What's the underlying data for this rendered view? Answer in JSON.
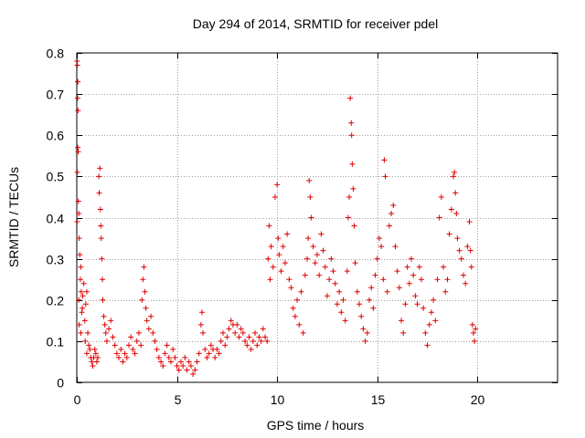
{
  "chart_data": {
    "type": "scatter",
    "title": "Day 294 of 2014, SRMTID for receiver pdel",
    "xlabel": "GPS time / hours",
    "ylabel": "SRMTID / TECUs",
    "xlim": [
      0,
      24
    ],
    "ylim": [
      0,
      0.8
    ],
    "xticks": [
      0,
      5,
      10,
      15,
      20
    ],
    "xtick_labels": [
      "0",
      "5",
      "10",
      "15",
      "20"
    ],
    "yticks": [
      0,
      0.1,
      0.2,
      0.3,
      0.4,
      0.5,
      0.6,
      0.7,
      0.8
    ],
    "ytick_labels": [
      "0",
      "0.1",
      "0.2",
      "0.3",
      "0.4",
      "0.5",
      "0.6",
      "0.7",
      "0.8"
    ],
    "grid": true,
    "marker": "+",
    "colors": {
      "points": "#e00000",
      "grid": "#a0a0a0",
      "axes": "#000000"
    },
    "series": [
      {
        "name": "SRMTID",
        "points": [
          [
            0.02,
            0.78
          ],
          [
            0.03,
            0.77
          ],
          [
            0.05,
            0.73
          ],
          [
            0.04,
            0.69
          ],
          [
            0.06,
            0.66
          ],
          [
            0.05,
            0.57
          ],
          [
            0.07,
            0.56
          ],
          [
            0.03,
            0.51
          ],
          [
            0.08,
            0.44
          ],
          [
            0.1,
            0.41
          ],
          [
            0.02,
            0.39
          ],
          [
            0.12,
            0.35
          ],
          [
            0.15,
            0.31
          ],
          [
            0.2,
            0.28
          ],
          [
            0.18,
            0.25
          ],
          [
            0.22,
            0.22
          ],
          [
            0.1,
            0.2
          ],
          [
            0.25,
            0.17
          ],
          [
            0.3,
            0.21
          ],
          [
            0.35,
            0.24
          ],
          [
            0.28,
            0.18
          ],
          [
            0.12,
            0.14
          ],
          [
            0.4,
            0.15
          ],
          [
            0.2,
            0.12
          ],
          [
            0.45,
            0.19
          ],
          [
            0.5,
            0.22
          ],
          [
            0.42,
            0.1
          ],
          [
            0.55,
            0.12
          ],
          [
            0.6,
            0.09
          ],
          [
            0.5,
            0.07
          ],
          [
            0.65,
            0.08
          ],
          [
            0.7,
            0.06
          ],
          [
            0.75,
            0.05
          ],
          [
            0.8,
            0.04
          ],
          [
            0.85,
            0.06
          ],
          [
            0.9,
            0.08
          ],
          [
            0.95,
            0.07
          ],
          [
            1.0,
            0.05
          ],
          [
            1.05,
            0.06
          ],
          [
            1.1,
            0.5
          ],
          [
            1.15,
            0.52
          ],
          [
            1.12,
            0.46
          ],
          [
            1.18,
            0.42
          ],
          [
            1.2,
            0.38
          ],
          [
            1.22,
            0.35
          ],
          [
            1.25,
            0.3
          ],
          [
            1.28,
            0.25
          ],
          [
            1.3,
            0.2
          ],
          [
            1.35,
            0.16
          ],
          [
            1.4,
            0.14
          ],
          [
            1.45,
            0.12
          ],
          [
            1.5,
            0.1
          ],
          [
            1.6,
            0.13
          ],
          [
            1.7,
            0.15
          ],
          [
            1.8,
            0.11
          ],
          [
            1.9,
            0.09
          ],
          [
            2.0,
            0.07
          ],
          [
            2.1,
            0.06
          ],
          [
            2.2,
            0.08
          ],
          [
            2.3,
            0.05
          ],
          [
            2.4,
            0.07
          ],
          [
            2.5,
            0.06
          ],
          [
            2.6,
            0.09
          ],
          [
            2.7,
            0.11
          ],
          [
            2.8,
            0.08
          ],
          [
            2.9,
            0.07
          ],
          [
            3.0,
            0.1
          ],
          [
            3.1,
            0.12
          ],
          [
            3.2,
            0.09
          ],
          [
            3.25,
            0.2
          ],
          [
            3.3,
            0.25
          ],
          [
            3.35,
            0.28
          ],
          [
            3.4,
            0.22
          ],
          [
            3.45,
            0.18
          ],
          [
            3.5,
            0.15
          ],
          [
            3.6,
            0.13
          ],
          [
            3.7,
            0.16
          ],
          [
            3.8,
            0.12
          ],
          [
            3.9,
            0.1
          ],
          [
            4.0,
            0.08
          ],
          [
            4.1,
            0.06
          ],
          [
            4.2,
            0.05
          ],
          [
            4.3,
            0.04
          ],
          [
            4.4,
            0.07
          ],
          [
            4.5,
            0.09
          ],
          [
            4.6,
            0.06
          ],
          [
            4.7,
            0.05
          ],
          [
            4.8,
            0.08
          ],
          [
            4.9,
            0.06
          ],
          [
            5.0,
            0.04
          ],
          [
            5.1,
            0.03
          ],
          [
            5.2,
            0.05
          ],
          [
            5.3,
            0.04
          ],
          [
            5.4,
            0.06
          ],
          [
            5.5,
            0.03
          ],
          [
            5.6,
            0.05
          ],
          [
            5.7,
            0.04
          ],
          [
            5.8,
            0.02
          ],
          [
            5.9,
            0.03
          ],
          [
            6.0,
            0.05
          ],
          [
            6.1,
            0.07
          ],
          [
            6.2,
            0.14
          ],
          [
            6.25,
            0.17
          ],
          [
            6.3,
            0.12
          ],
          [
            6.4,
            0.08
          ],
          [
            6.5,
            0.06
          ],
          [
            6.6,
            0.07
          ],
          [
            6.7,
            0.09
          ],
          [
            6.8,
            0.08
          ],
          [
            6.9,
            0.06
          ],
          [
            7.0,
            0.08
          ],
          [
            7.1,
            0.07
          ],
          [
            7.2,
            0.1
          ],
          [
            7.3,
            0.12
          ],
          [
            7.4,
            0.09
          ],
          [
            7.5,
            0.11
          ],
          [
            7.6,
            0.13
          ],
          [
            7.7,
            0.15
          ],
          [
            7.8,
            0.14
          ],
          [
            7.9,
            0.12
          ],
          [
            8.0,
            0.14
          ],
          [
            8.1,
            0.11
          ],
          [
            8.2,
            0.13
          ],
          [
            8.3,
            0.12
          ],
          [
            8.4,
            0.1
          ],
          [
            8.5,
            0.09
          ],
          [
            8.6,
            0.11
          ],
          [
            8.7,
            0.08
          ],
          [
            8.8,
            0.1
          ],
          [
            8.9,
            0.12
          ],
          [
            9.0,
            0.09
          ],
          [
            9.1,
            0.11
          ],
          [
            9.2,
            0.1
          ],
          [
            9.3,
            0.13
          ],
          [
            9.4,
            0.11
          ],
          [
            9.5,
            0.1
          ],
          [
            9.55,
            0.3
          ],
          [
            9.6,
            0.38
          ],
          [
            9.65,
            0.25
          ],
          [
            9.7,
            0.33
          ],
          [
            9.8,
            0.28
          ],
          [
            9.9,
            0.45
          ],
          [
            10.0,
            0.48
          ],
          [
            10.05,
            0.35
          ],
          [
            10.1,
            0.31
          ],
          [
            10.2,
            0.27
          ],
          [
            10.3,
            0.33
          ],
          [
            10.4,
            0.29
          ],
          [
            10.5,
            0.36
          ],
          [
            10.6,
            0.25
          ],
          [
            10.7,
            0.23
          ],
          [
            10.8,
            0.18
          ],
          [
            10.9,
            0.16
          ],
          [
            11.0,
            0.2
          ],
          [
            11.1,
            0.14
          ],
          [
            11.2,
            0.22
          ],
          [
            11.3,
            0.12
          ],
          [
            11.4,
            0.26
          ],
          [
            11.5,
            0.3
          ],
          [
            11.55,
            0.35
          ],
          [
            11.6,
            0.49
          ],
          [
            11.65,
            0.45
          ],
          [
            11.7,
            0.4
          ],
          [
            11.8,
            0.33
          ],
          [
            11.9,
            0.29
          ],
          [
            12.0,
            0.31
          ],
          [
            12.1,
            0.26
          ],
          [
            12.2,
            0.36
          ],
          [
            12.3,
            0.32
          ],
          [
            12.4,
            0.28
          ],
          [
            12.5,
            0.21
          ],
          [
            12.6,
            0.25
          ],
          [
            12.7,
            0.3
          ],
          [
            12.8,
            0.27
          ],
          [
            12.9,
            0.24
          ],
          [
            13.0,
            0.19
          ],
          [
            13.1,
            0.22
          ],
          [
            13.2,
            0.17
          ],
          [
            13.3,
            0.2
          ],
          [
            13.4,
            0.15
          ],
          [
            13.5,
            0.27
          ],
          [
            13.55,
            0.4
          ],
          [
            13.6,
            0.45
          ],
          [
            13.65,
            0.69
          ],
          [
            13.7,
            0.63
          ],
          [
            13.72,
            0.6
          ],
          [
            13.75,
            0.53
          ],
          [
            13.8,
            0.47
          ],
          [
            13.85,
            0.38
          ],
          [
            13.9,
            0.29
          ],
          [
            14.0,
            0.22
          ],
          [
            14.1,
            0.19
          ],
          [
            14.2,
            0.16
          ],
          [
            14.3,
            0.13
          ],
          [
            14.4,
            0.1
          ],
          [
            14.5,
            0.12
          ],
          [
            14.6,
            0.2
          ],
          [
            14.7,
            0.23
          ],
          [
            14.8,
            0.18
          ],
          [
            14.9,
            0.26
          ],
          [
            15.0,
            0.3
          ],
          [
            15.1,
            0.35
          ],
          [
            15.2,
            0.33
          ],
          [
            15.3,
            0.25
          ],
          [
            15.35,
            0.54
          ],
          [
            15.4,
            0.5
          ],
          [
            15.5,
            0.22
          ],
          [
            15.6,
            0.38
          ],
          [
            15.7,
            0.41
          ],
          [
            15.8,
            0.43
          ],
          [
            15.9,
            0.33
          ],
          [
            16.0,
            0.27
          ],
          [
            16.1,
            0.23
          ],
          [
            16.2,
            0.15
          ],
          [
            16.3,
            0.12
          ],
          [
            16.4,
            0.19
          ],
          [
            16.5,
            0.28
          ],
          [
            16.6,
            0.24
          ],
          [
            16.7,
            0.3
          ],
          [
            16.8,
            0.26
          ],
          [
            16.9,
            0.21
          ],
          [
            17.0,
            0.19
          ],
          [
            17.1,
            0.28
          ],
          [
            17.2,
            0.25
          ],
          [
            17.3,
            0.18
          ],
          [
            17.4,
            0.12
          ],
          [
            17.5,
            0.09
          ],
          [
            17.6,
            0.14
          ],
          [
            17.7,
            0.17
          ],
          [
            17.8,
            0.2
          ],
          [
            17.9,
            0.15
          ],
          [
            18.0,
            0.25
          ],
          [
            18.1,
            0.4
          ],
          [
            18.2,
            0.45
          ],
          [
            18.3,
            0.28
          ],
          [
            18.4,
            0.22
          ],
          [
            18.5,
            0.25
          ],
          [
            18.6,
            0.36
          ],
          [
            18.7,
            0.42
          ],
          [
            18.8,
            0.5
          ],
          [
            18.85,
            0.51
          ],
          [
            18.9,
            0.46
          ],
          [
            18.95,
            0.41
          ],
          [
            19.0,
            0.35
          ],
          [
            19.1,
            0.32
          ],
          [
            19.2,
            0.3
          ],
          [
            19.3,
            0.26
          ],
          [
            19.4,
            0.24
          ],
          [
            19.5,
            0.33
          ],
          [
            19.6,
            0.39
          ],
          [
            19.65,
            0.32
          ],
          [
            19.7,
            0.28
          ],
          [
            19.75,
            0.14
          ],
          [
            19.8,
            0.12
          ],
          [
            19.85,
            0.1
          ],
          [
            19.9,
            0.13
          ]
        ]
      }
    ]
  }
}
